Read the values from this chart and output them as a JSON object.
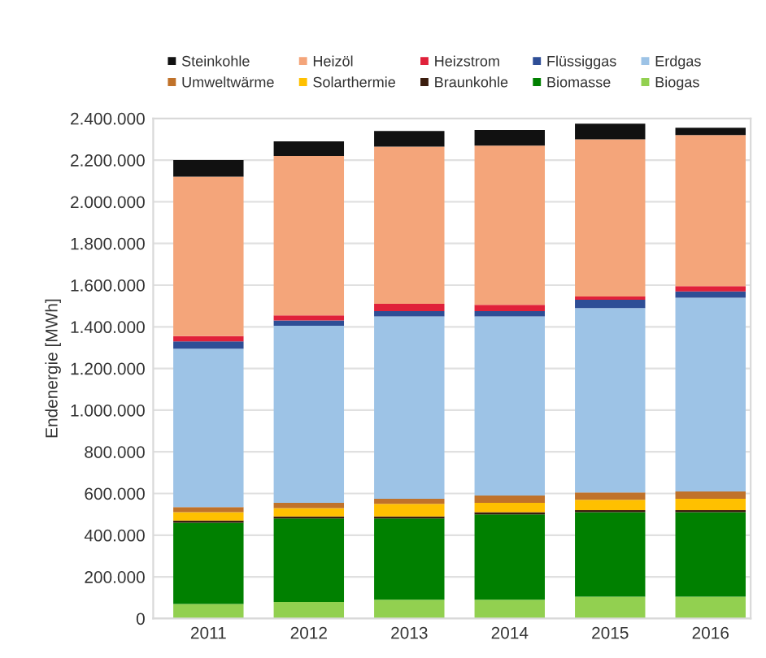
{
  "chart_data": {
    "type": "bar",
    "stacked": true,
    "ylabel": "Endenergie [MWh]",
    "categories": [
      "2011",
      "2012",
      "2013",
      "2014",
      "2015",
      "2016"
    ],
    "series": [
      {
        "name": "Biogas",
        "color": "#92d050",
        "values": [
          70000,
          80000,
          90000,
          90000,
          105000,
          105000
        ]
      },
      {
        "name": "Biomasse",
        "color": "#008000",
        "values": [
          390000,
          400000,
          390000,
          410000,
          405000,
          405000
        ]
      },
      {
        "name": "Braunkohle",
        "color": "#3b1d0e",
        "values": [
          10000,
          10000,
          10000,
          10000,
          10000,
          10000
        ]
      },
      {
        "name": "Solarthermie",
        "color": "#ffc000",
        "values": [
          40000,
          40000,
          60000,
          45000,
          50000,
          55000
        ]
      },
      {
        "name": "Umweltwärme",
        "color": "#c0722a",
        "values": [
          25000,
          25000,
          25000,
          35000,
          35000,
          35000
        ]
      },
      {
        "name": "Erdgas",
        "color": "#9dc3e6",
        "values": [
          760000,
          850000,
          875000,
          860000,
          885000,
          930000
        ]
      },
      {
        "name": "Flüssiggas",
        "color": "#2e4e96",
        "values": [
          35000,
          25000,
          25000,
          25000,
          40000,
          30000
        ]
      },
      {
        "name": "Heizstrom",
        "color": "#e0213a",
        "values": [
          25000,
          25000,
          35000,
          30000,
          15000,
          25000
        ]
      },
      {
        "name": "Heizöl",
        "color": "#f4a57a",
        "values": [
          765000,
          765000,
          755000,
          765000,
          755000,
          725000
        ]
      },
      {
        "name": "Steinkohle",
        "color": "#111111",
        "values": [
          80000,
          70000,
          75000,
          75000,
          75000,
          35000
        ]
      }
    ],
    "ylim": [
      0,
      2400000
    ],
    "yticks": [
      0,
      {
        "value": 200000,
        "label": "200.000"
      },
      {
        "value": 400000,
        "label": "400.000"
      },
      {
        "value": 600000,
        "label": "600.000"
      },
      {
        "value": 800000,
        "label": "800.000"
      },
      {
        "value": 1000000,
        "label": "1.000.000"
      },
      {
        "value": 1200000,
        "label": "1.200.000"
      },
      {
        "value": 1400000,
        "label": "1.400.000"
      },
      {
        "value": 1600000,
        "label": "1.600.000"
      },
      {
        "value": 1800000,
        "label": "1.800.000"
      },
      {
        "value": 2000000,
        "label": "2.000.000"
      },
      {
        "value": 2200000,
        "label": "2.200.000"
      },
      {
        "value": 2400000,
        "label": "2.400.000"
      }
    ],
    "grid": "y",
    "legend": "top"
  }
}
